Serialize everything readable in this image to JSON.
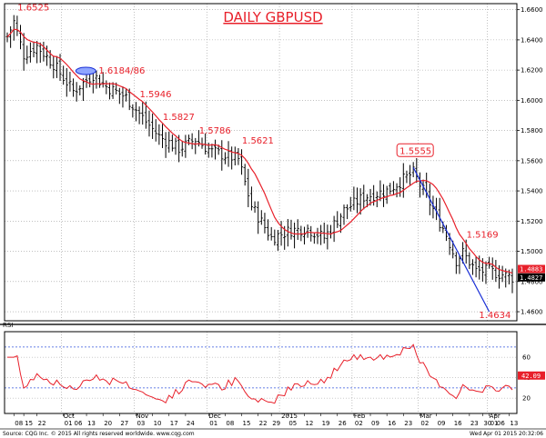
{
  "chart_data": {
    "type": "ohlc",
    "title": "DAILY GBPUSD",
    "price_axis": {
      "ticks": [
        "1.6600",
        "1.6400",
        "1.6200",
        "1.6000",
        "1.5800",
        "1.5600",
        "1.5400",
        "1.5200",
        "1.5000",
        "1.4800",
        "1.4600"
      ],
      "range": [
        1.454,
        1.664
      ]
    },
    "rsi_axis": {
      "label": "RSI",
      "ticks": [
        "60",
        "40",
        "20"
      ],
      "range": [
        5,
        85
      ],
      "guides": [
        70,
        30
      ]
    },
    "price_tags": [
      {
        "value": "1.4883",
        "price": 1.4883,
        "color": "#e8202a"
      },
      {
        "value": "1.4827",
        "price": 1.4827,
        "color": "#000000"
      }
    ],
    "rsi_tag": {
      "value": "42.09",
      "level": 42.09
    },
    "annotations": [
      {
        "text": "1.6525",
        "index": 2
      },
      {
        "text": "1.6184/86",
        "index": 26
      },
      {
        "text": "1.5946",
        "index": 39
      },
      {
        "text": "1.5827",
        "index": 46
      },
      {
        "text": "1.5786",
        "index": 57
      },
      {
        "text": "1.5621",
        "index": 70
      },
      {
        "text": "1.5555",
        "index": 123
      },
      {
        "text": "1.5169",
        "index": 138
      },
      {
        "text": "1.4634",
        "index": 144
      }
    ],
    "month_labels": [
      {
        "text": "Oct",
        "index": 17
      },
      {
        "text": "Nov",
        "index": 39
      },
      {
        "text": "Dec",
        "index": 61
      },
      {
        "text": "2015",
        "index": 83
      },
      {
        "text": "Feb",
        "index": 105
      },
      {
        "text": "Mar",
        "index": 125
      },
      {
        "text": "Apr",
        "index": 146
      }
    ],
    "day_labels": [
      {
        "text": "08",
        "index": 2
      },
      {
        "text": "15",
        "index": 5
      },
      {
        "text": "22",
        "index": 9
      },
      {
        "text": "01",
        "index": 17
      },
      {
        "text": "06",
        "index": 20
      },
      {
        "text": "13",
        "index": 24
      },
      {
        "text": "20",
        "index": 29
      },
      {
        "text": "27",
        "index": 34
      },
      {
        "text": "03",
        "index": 39
      },
      {
        "text": "10",
        "index": 44
      },
      {
        "text": "17",
        "index": 49
      },
      {
        "text": "24",
        "index": 54
      },
      {
        "text": "01",
        "index": 61
      },
      {
        "text": "08",
        "index": 66
      },
      {
        "text": "15",
        "index": 71
      },
      {
        "text": "22",
        "index": 76
      },
      {
        "text": "29",
        "index": 80
      },
      {
        "text": "05",
        "index": 85
      },
      {
        "text": "12",
        "index": 90
      },
      {
        "text": "19",
        "index": 95
      },
      {
        "text": "26",
        "index": 100
      },
      {
        "text": "02",
        "index": 105
      },
      {
        "text": "09",
        "index": 110
      },
      {
        "text": "16",
        "index": 115
      },
      {
        "text": "23",
        "index": 120
      },
      {
        "text": "02",
        "index": 125
      },
      {
        "text": "09",
        "index": 130
      },
      {
        "text": "16",
        "index": 135
      },
      {
        "text": "23",
        "index": 140
      },
      {
        "text": "30",
        "index": 144
      },
      {
        "text": "01",
        "index": 146
      },
      {
        "text": "06",
        "index": 148
      },
      {
        "text": "13",
        "index": 152
      }
    ],
    "trendline": {
      "from": {
        "index": 123,
        "price": 1.5555
      },
      "to": {
        "index": 146,
        "price": 1.46
      }
    },
    "footer_left": "Source: CQG Inc. © 2015 All rights reserved worldwide.  www.cqg.com",
    "footer_right": "Wed Apr 01 2015 20:32:06"
  }
}
